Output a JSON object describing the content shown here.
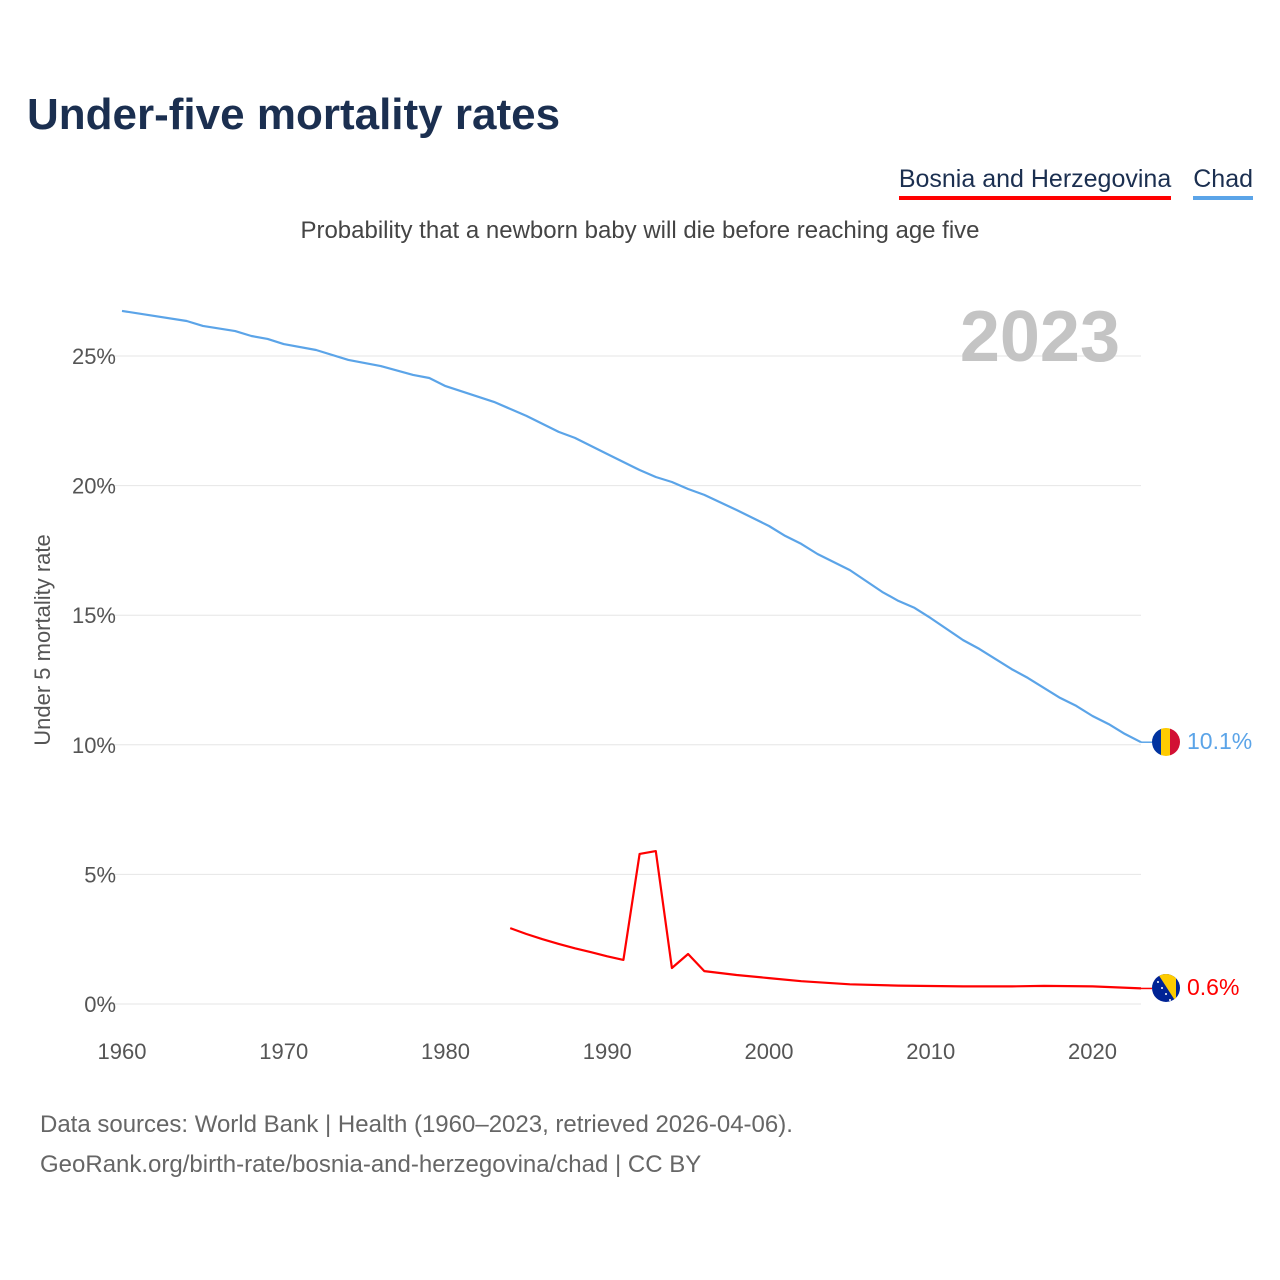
{
  "title": "Under-five mortality rates",
  "subtitle": "Probability that a newborn baby will die before reaching age five",
  "year_label": "2023",
  "footer": {
    "line1": "Data sources: World Bank | Health (1960–2023, retrieved 2026-04-06).",
    "line2": "GeoRank.org/birth-rate/bosnia-and-herzegovina/chad | CC BY"
  },
  "chart_data": {
    "type": "line",
    "title": "Under-five mortality rates",
    "ylabel": "Under 5 mortality rate",
    "xlabel": "",
    "xlim": [
      1960,
      2023
    ],
    "ylim": [
      0,
      25
    ],
    "x_ticks": [
      1960,
      1970,
      1980,
      1990,
      2000,
      2010,
      2020
    ],
    "y_ticks": [
      0,
      5,
      10,
      15,
      20,
      25
    ],
    "y_tick_labels": [
      "0%",
      "5%",
      "10%",
      "15%",
      "20%",
      "25%"
    ],
    "x_tick_labels": [
      "1960",
      "1970",
      "1980",
      "1990",
      "2000",
      "2010",
      "2020"
    ],
    "grid": true,
    "legend_position": "top-right",
    "series": [
      {
        "name": "Bosnia and Herzegovina",
        "color": "#ff0000",
        "end_label": "0.6%",
        "flag": "bosnia-flag",
        "points": [
          [
            1984,
            2.93
          ],
          [
            1985,
            2.7
          ],
          [
            1986,
            2.5
          ],
          [
            1987,
            2.32
          ],
          [
            1988,
            2.15
          ],
          [
            1989,
            2.0
          ],
          [
            1990,
            1.84
          ],
          [
            1991,
            1.7
          ],
          [
            1992,
            5.79
          ],
          [
            1993,
            5.9
          ],
          [
            1994,
            1.39
          ],
          [
            1995,
            1.93
          ],
          [
            1996,
            1.27
          ],
          [
            1998,
            1.12
          ],
          [
            2000,
            1.0
          ],
          [
            2002,
            0.88
          ],
          [
            2005,
            0.76
          ],
          [
            2008,
            0.71
          ],
          [
            2012,
            0.68
          ],
          [
            2015,
            0.68
          ],
          [
            2017,
            0.7
          ],
          [
            2020,
            0.68
          ],
          [
            2023,
            0.6
          ]
        ]
      },
      {
        "name": "Chad",
        "color": "#5ba4e8",
        "end_label": "10.1%",
        "flag": "chad-flag",
        "points": [
          [
            1960,
            26.74
          ],
          [
            1964,
            26.35
          ],
          [
            1965,
            26.16
          ],
          [
            1967,
            25.96
          ],
          [
            1968,
            25.77
          ],
          [
            1969,
            25.66
          ],
          [
            1970,
            25.46
          ],
          [
            1972,
            25.23
          ],
          [
            1974,
            24.85
          ],
          [
            1976,
            24.61
          ],
          [
            1978,
            24.27
          ],
          [
            1979,
            24.15
          ],
          [
            1980,
            23.84
          ],
          [
            1983,
            23.23
          ],
          [
            1985,
            22.69
          ],
          [
            1987,
            22.07
          ],
          [
            1988,
            21.84
          ],
          [
            1990,
            21.22
          ],
          [
            1992,
            20.6
          ],
          [
            1993,
            20.33
          ],
          [
            1994,
            20.14
          ],
          [
            1995,
            19.87
          ],
          [
            1996,
            19.64
          ],
          [
            1998,
            19.06
          ],
          [
            2000,
            18.44
          ],
          [
            2001,
            18.06
          ],
          [
            2002,
            17.75
          ],
          [
            2003,
            17.36
          ],
          [
            2005,
            16.74
          ],
          [
            2007,
            15.9
          ],
          [
            2008,
            15.55
          ],
          [
            2009,
            15.28
          ],
          [
            2010,
            14.89
          ],
          [
            2012,
            14.04
          ],
          [
            2013,
            13.7
          ],
          [
            2015,
            12.92
          ],
          [
            2016,
            12.58
          ],
          [
            2018,
            11.81
          ],
          [
            2019,
            11.5
          ],
          [
            2020,
            11.11
          ],
          [
            2021,
            10.8
          ],
          [
            2022,
            10.42
          ],
          [
            2023,
            10.1
          ]
        ]
      }
    ]
  }
}
